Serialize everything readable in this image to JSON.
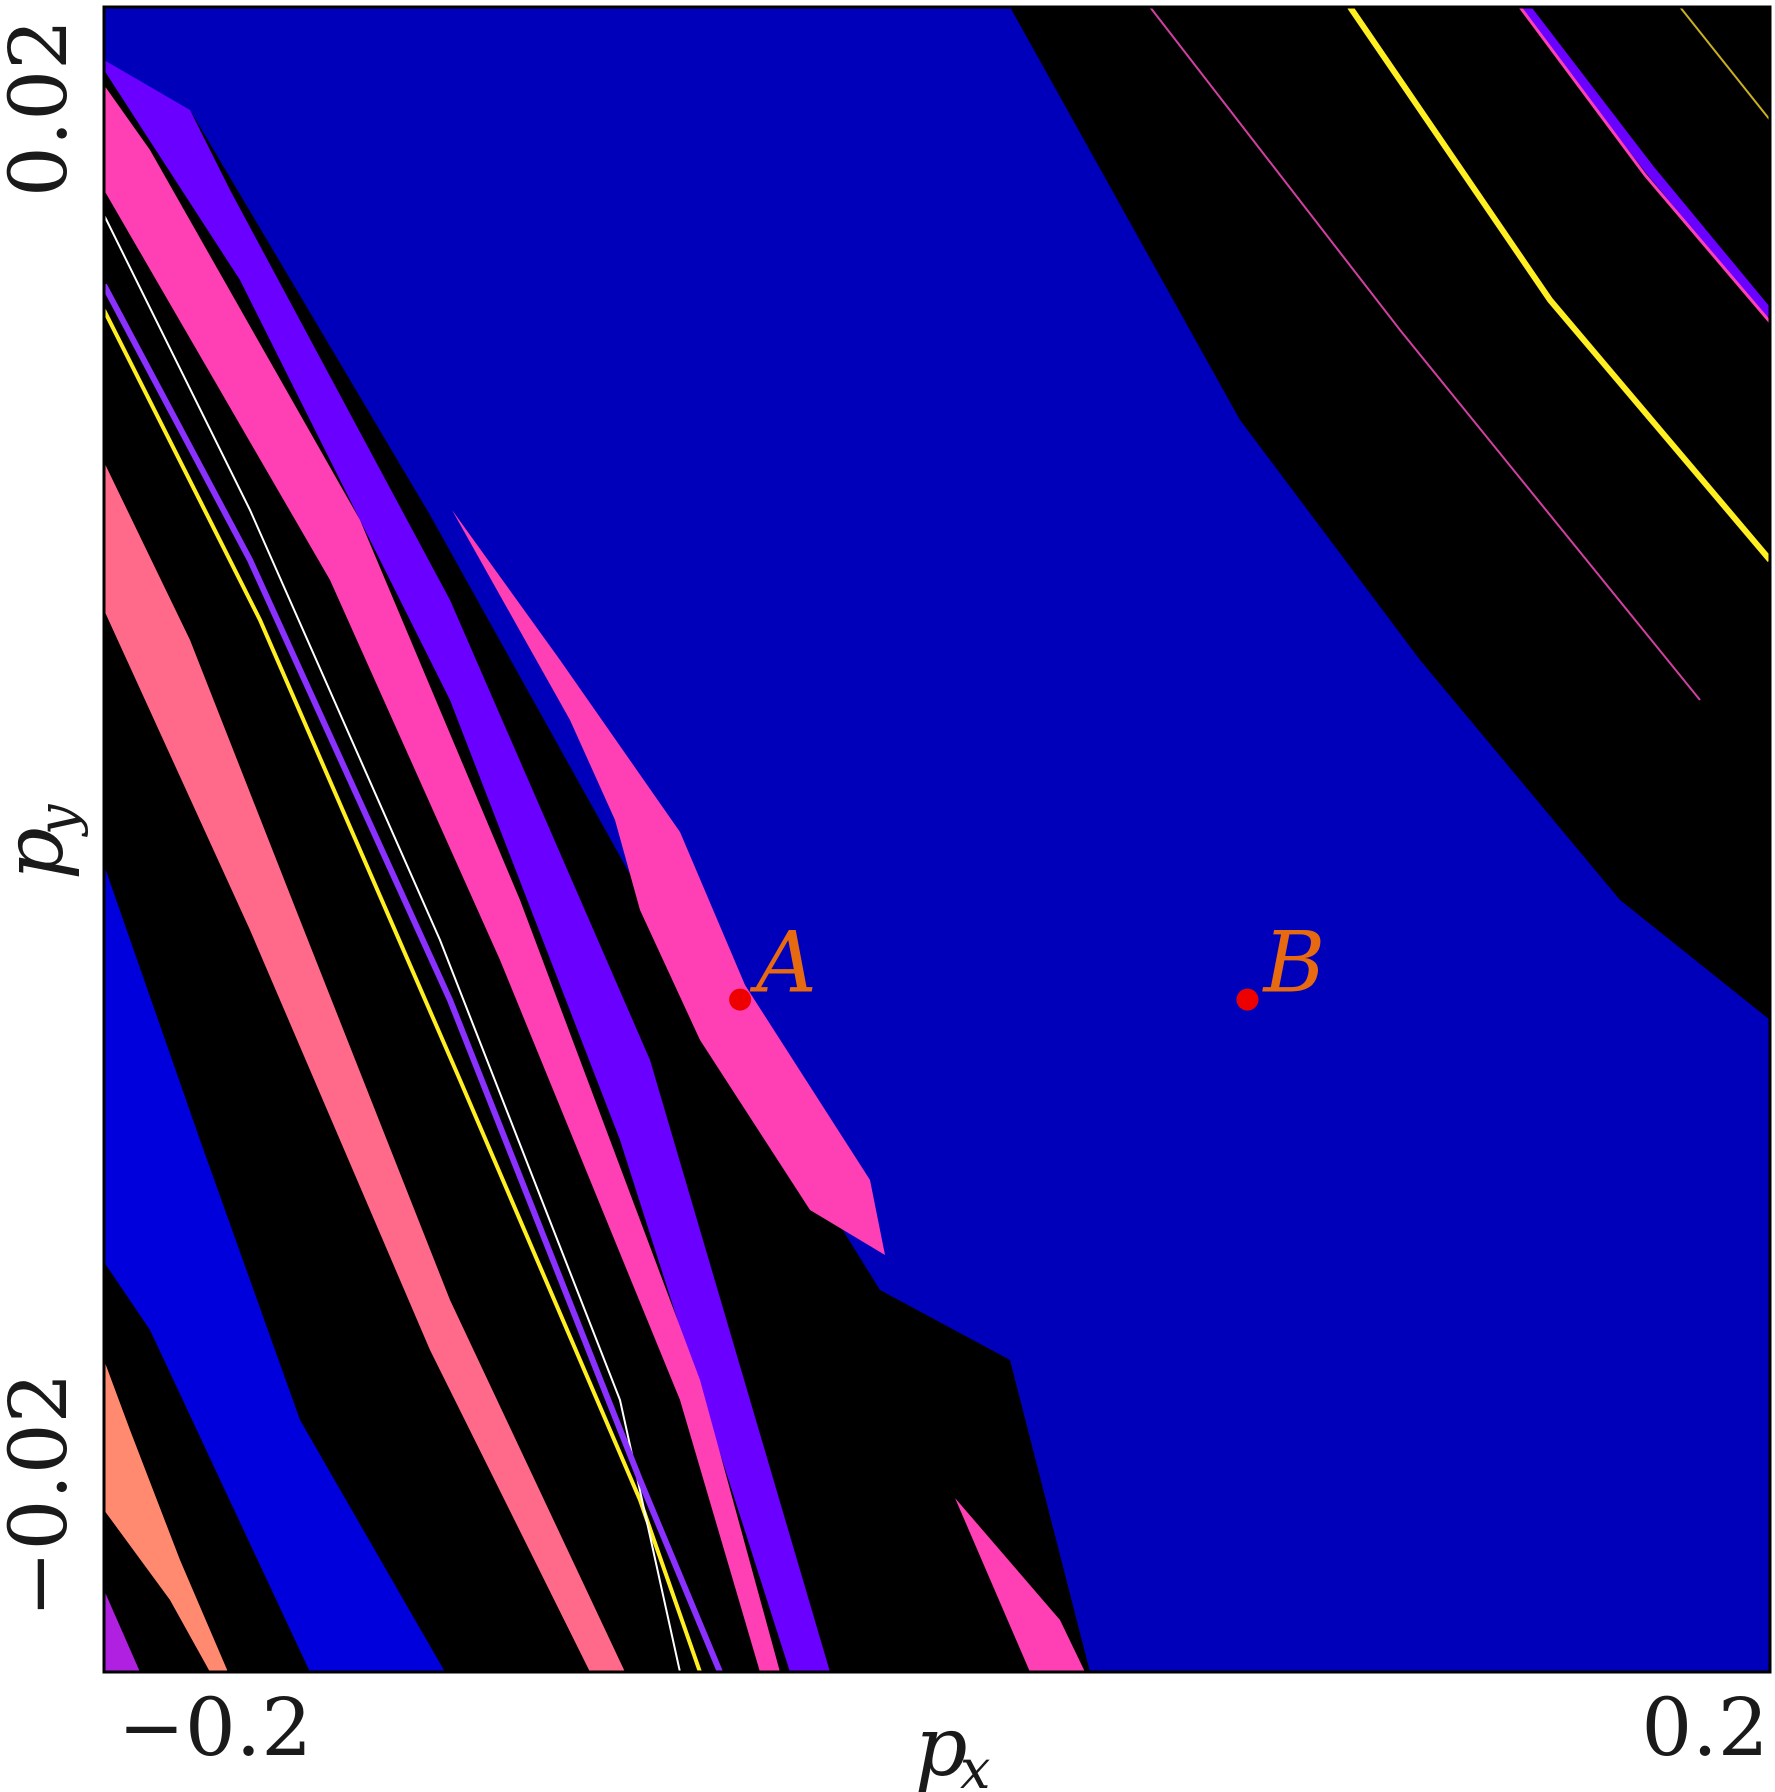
{
  "chart_data": {
    "type": "heatmap",
    "title": "",
    "xlabel": "p",
    "xlabel_sub": "x",
    "ylabel": "p",
    "ylabel_sub": "y",
    "xlim": [
      -0.22,
      0.22
    ],
    "ylim": [
      -0.0275,
      0.0245
    ],
    "x_ticks": [
      {
        "value": -0.2,
        "label": "−0.2"
      },
      {
        "value": 0.2,
        "label": "0.2"
      }
    ],
    "y_ticks": [
      {
        "value": 0.02,
        "label": "0.02"
      },
      {
        "value": -0.02,
        "label": "−0.02"
      }
    ],
    "grid": false,
    "legend": "none",
    "colors": {
      "background_basin": "#000000",
      "main_basin": "#0000bb",
      "blue_band": "#0000dd",
      "violet": "#6a00ff",
      "pink": "#ff3fb4",
      "salmon": "#ff6a8a",
      "light_salmon": "#ff8a70",
      "magenta": "#b020e0",
      "yellow": "#ffee22",
      "marker": "#ee0000",
      "label": "#e86a10"
    },
    "points": [
      {
        "label": "A",
        "x": -0.052,
        "y": -0.0065
      },
      {
        "label": "B",
        "x": 0.082,
        "y": -0.0065
      }
    ]
  }
}
